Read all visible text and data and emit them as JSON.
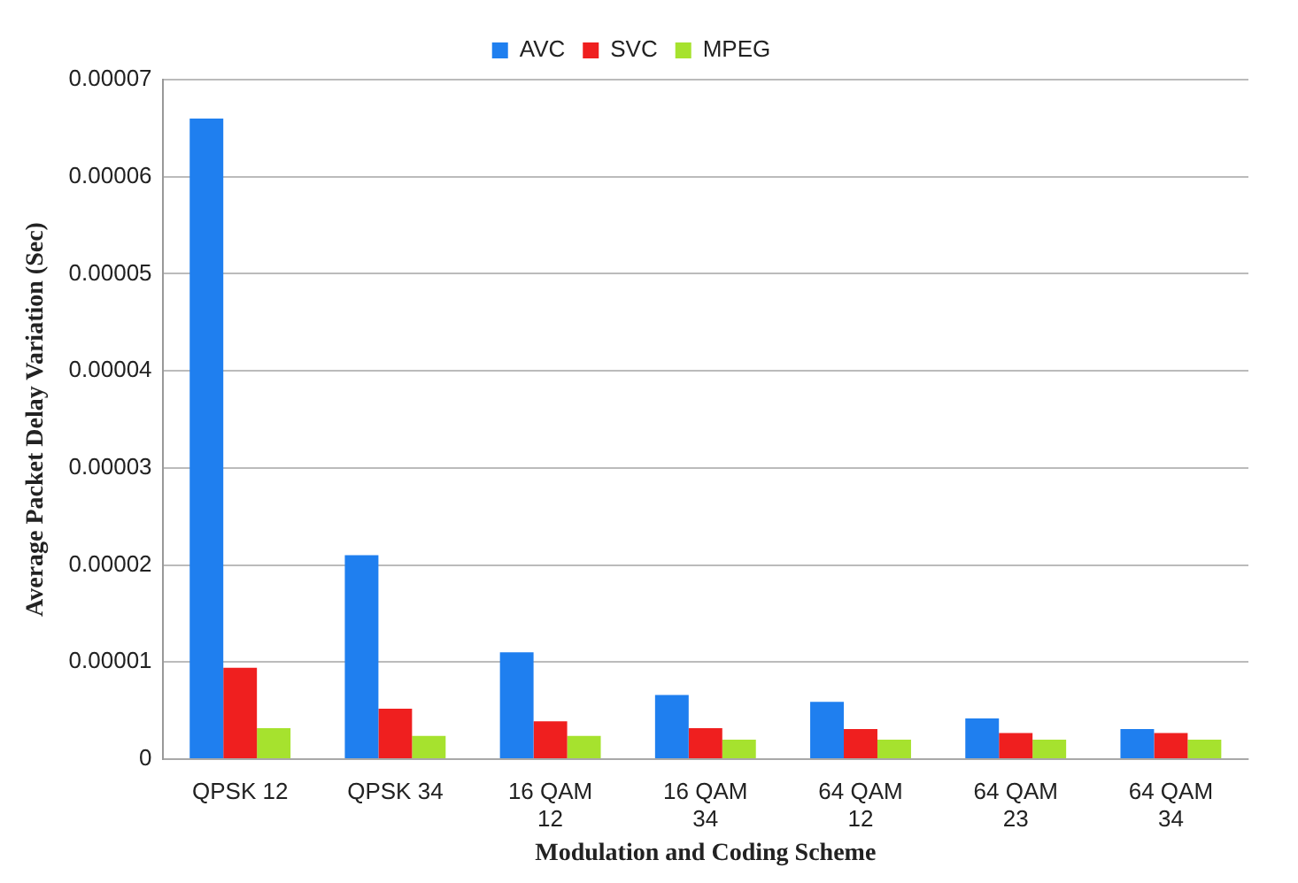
{
  "chart_data": {
    "type": "bar",
    "xlabel": "Modulation and Coding Scheme",
    "ylabel": "Average Packet Delay Variation (Sec)",
    "categories": [
      "QPSK 12",
      "QPSK 34",
      "16 QAM 12",
      "16 QAM 34",
      "64 QAM 12",
      "64 QAM 23",
      "64 QAM 34"
    ],
    "series": [
      {
        "name": "AVC",
        "color": "#1f7fef",
        "values": [
          6.6e-05,
          2.1e-05,
          1.1e-05,
          6.6e-06,
          5.9e-06,
          4.2e-06,
          3.1e-06
        ]
      },
      {
        "name": "SVC",
        "color": "#ef1f1f",
        "values": [
          9.4e-06,
          5.2e-06,
          3.9e-06,
          3.2e-06,
          3.1e-06,
          2.7e-06,
          2.7e-06
        ]
      },
      {
        "name": "MPEG",
        "color": "#a6e22e",
        "values": [
          3.2e-06,
          2.4e-06,
          2.4e-06,
          2e-06,
          2e-06,
          2e-06,
          2e-06
        ]
      }
    ],
    "ylim": [
      0,
      7e-05
    ],
    "yticks": [
      0,
      {
        "value": 1e-05,
        "label": "0.00001"
      },
      {
        "value": 2e-05,
        "label": "0.00002"
      },
      {
        "value": 3e-05,
        "label": "0.00003"
      },
      {
        "value": 4e-05,
        "label": "0.00004"
      },
      {
        "value": 5e-05,
        "label": "0.00005"
      },
      {
        "value": 6e-05,
        "label": "0.00006"
      },
      {
        "value": 7e-05,
        "label": "0.00007"
      }
    ],
    "grid": "y",
    "legend": "top"
  }
}
